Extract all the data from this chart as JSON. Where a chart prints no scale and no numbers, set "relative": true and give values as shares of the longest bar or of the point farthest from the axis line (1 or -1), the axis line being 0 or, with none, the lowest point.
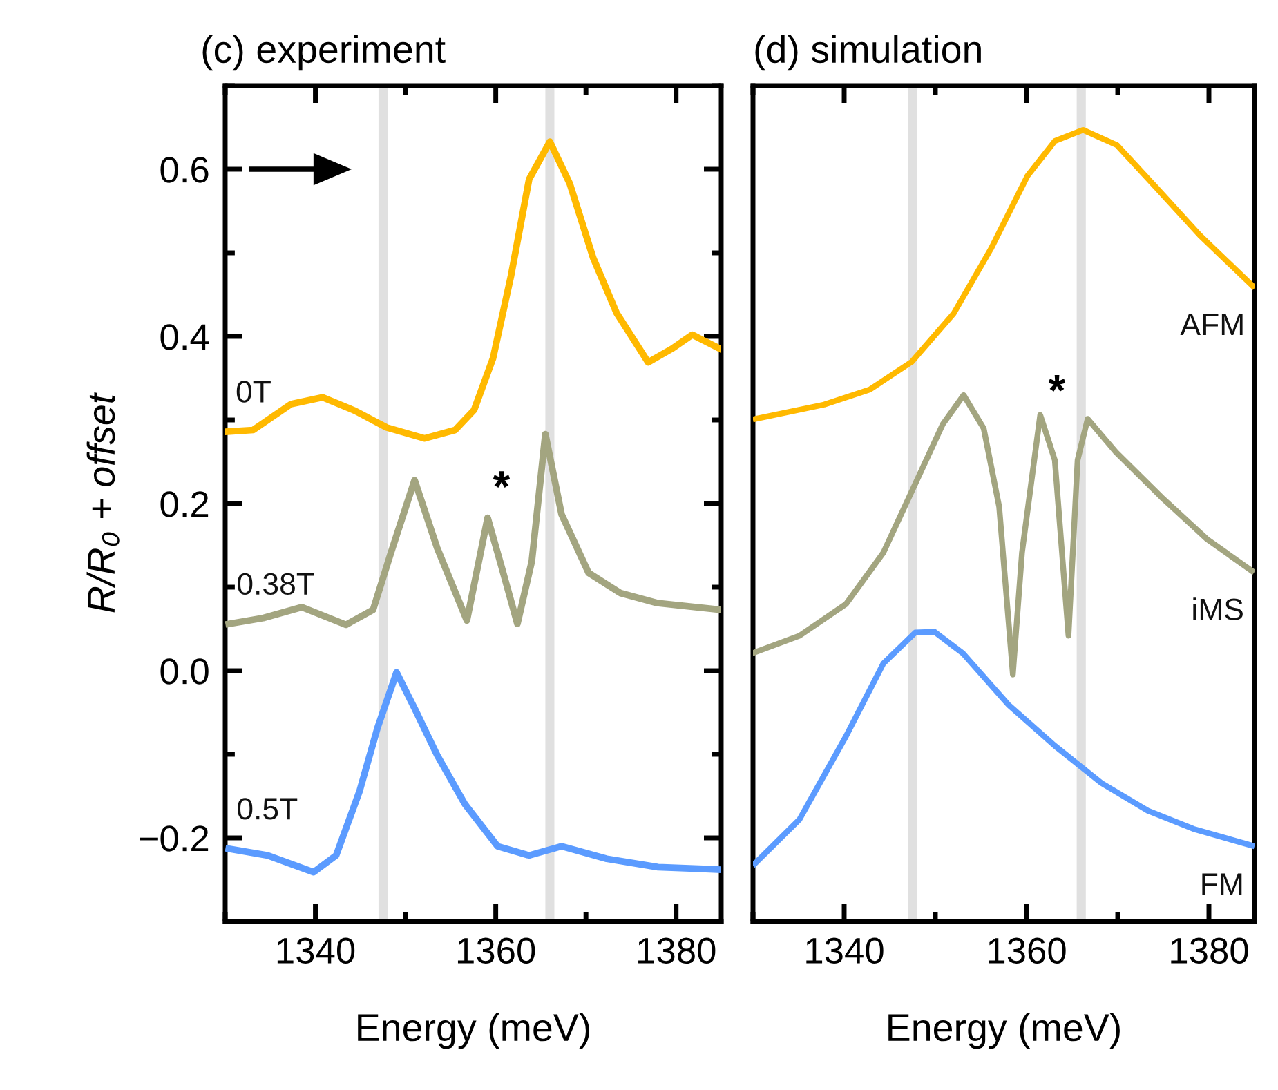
{
  "chart_data": [
    {
      "type": "line",
      "title": "(c) experiment",
      "xlabel": "Energy (meV)",
      "ylabel": "R/R₀ + offset",
      "xlim": [
        1330,
        1385
      ],
      "xticks": [
        1340,
        1360,
        1380
      ],
      "ylim": [
        -0.3,
        0.7
      ],
      "yticks": [
        {
          "value": -0.2,
          "label": "−0.2"
        },
        {
          "value": 0.0,
          "label": "0.0"
        },
        {
          "value": 0.2,
          "label": "0.2"
        },
        {
          "value": 0.4,
          "label": "0.4"
        },
        {
          "value": 0.6,
          "label": "0.6"
        }
      ],
      "bands": [
        {
          "axis": "x",
          "from": 1347,
          "to": 1348,
          "color": "#e0e0e0"
        },
        {
          "axis": "x",
          "from": 1365.5,
          "to": 1366.5,
          "color": "#e0e0e0"
        }
      ],
      "annotations": [
        "*"
      ],
      "series": [
        {
          "name": "0T",
          "color": "#ffb900",
          "x": [
            1330.3,
            1333.1,
            1337.3,
            1340.8,
            1344.4,
            1347.9,
            1352.1,
            1355.5,
            1357.6,
            1359.7,
            1361.7,
            1363.7,
            1366.0,
            1368.2,
            1370.8,
            1373.4,
            1376.9,
            1379.5,
            1381.8,
            1384.9
          ],
          "values": [
            0.286,
            0.288,
            0.319,
            0.327,
            0.311,
            0.291,
            0.278,
            0.288,
            0.312,
            0.374,
            0.473,
            0.588,
            0.633,
            0.583,
            0.494,
            0.428,
            0.369,
            0.385,
            0.402,
            0.385
          ]
        },
        {
          "name": "0.38T",
          "color": "#a3a580",
          "x": [
            1330.4,
            1334.2,
            1338.5,
            1343.4,
            1346.4,
            1348.4,
            1351.0,
            1353.5,
            1356.8,
            1359.1,
            1360.6,
            1362.4,
            1364.0,
            1365.5,
            1367.3,
            1370.3,
            1373.8,
            1377.9,
            1384.9
          ],
          "values": [
            0.056,
            0.063,
            0.076,
            0.055,
            0.073,
            0.142,
            0.228,
            0.147,
            0.06,
            0.183,
            0.126,
            0.056,
            0.131,
            0.283,
            0.187,
            0.117,
            0.093,
            0.081,
            0.073
          ]
        },
        {
          "name": "0.5T",
          "color": "#5b9bff",
          "x": [
            1330.4,
            1334.7,
            1339.8,
            1342.3,
            1344.9,
            1346.9,
            1349.0,
            1351.0,
            1353.5,
            1356.6,
            1360.2,
            1363.7,
            1367.3,
            1372.3,
            1378.0,
            1384.9
          ],
          "values": [
            -0.213,
            -0.221,
            -0.241,
            -0.221,
            -0.144,
            -0.068,
            -0.002,
            -0.045,
            -0.101,
            -0.16,
            -0.21,
            -0.221,
            -0.21,
            -0.225,
            -0.235,
            -0.238
          ]
        }
      ]
    },
    {
      "type": "line",
      "title": "(d) simulation",
      "xlabel": "Energy (meV)",
      "relative": true,
      "xlim": [
        1330,
        1385
      ],
      "xticks": [
        1340,
        1360,
        1380
      ],
      "bands": [
        {
          "axis": "x",
          "from": 1347,
          "to": 1348,
          "color": "#e0e0e0"
        },
        {
          "axis": "x",
          "from": 1365.5,
          "to": 1366.5,
          "color": "#e0e0e0"
        }
      ],
      "annotations": [
        "*"
      ],
      "series": [
        {
          "name": "AFM",
          "color": "#ffb900",
          "x": [
            1330.3,
            1337.8,
            1342.8,
            1347.4,
            1352.0,
            1356.1,
            1360.1,
            1363.1,
            1366.2,
            1369.9,
            1374.4,
            1379.0,
            1384.8
          ],
          "values": [
            0.635,
            0.653,
            0.672,
            0.707,
            0.768,
            0.85,
            0.942,
            0.986,
            1.0,
            0.981,
            0.925,
            0.867,
            0.803
          ]
        },
        {
          "name": "iMS",
          "color": "#a3a580",
          "x": [
            1330.2,
            1335.1,
            1340.2,
            1344.3,
            1347.8,
            1350.8,
            1353.1,
            1355.3,
            1357.0,
            1358.5,
            1359.5,
            1361.5,
            1363.1,
            1364.6,
            1365.6,
            1366.7,
            1369.8,
            1374.8,
            1379.8,
            1384.7
          ],
          "values": [
            0.34,
            0.361,
            0.401,
            0.466,
            0.553,
            0.628,
            0.665,
            0.623,
            0.524,
            0.312,
            0.466,
            0.64,
            0.583,
            0.361,
            0.583,
            0.635,
            0.593,
            0.536,
            0.483,
            0.443
          ]
        },
        {
          "name": "FM",
          "color": "#5b9bff",
          "x": [
            1330.2,
            1335.1,
            1340.2,
            1344.3,
            1347.8,
            1349.9,
            1353.0,
            1358.0,
            1363.1,
            1368.2,
            1373.3,
            1378.3,
            1384.7
          ],
          "values": [
            0.073,
            0.129,
            0.234,
            0.326,
            0.365,
            0.366,
            0.339,
            0.274,
            0.222,
            0.175,
            0.14,
            0.117,
            0.096
          ]
        }
      ]
    }
  ]
}
